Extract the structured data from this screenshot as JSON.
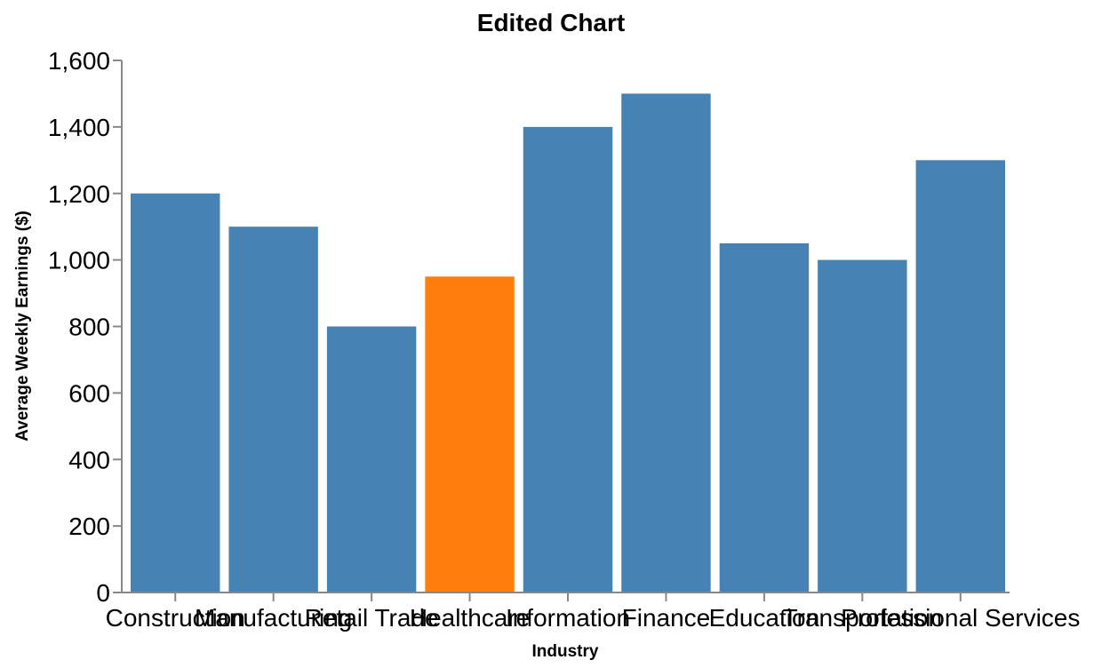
{
  "chart_data": {
    "type": "bar",
    "title": "Edited Chart",
    "xlabel": "Industry",
    "ylabel": "Average Weekly Earnings ($)",
    "categories": [
      "Construction",
      "Manufacturing",
      "Retail Trade",
      "Healthcare",
      "Information",
      "Finance",
      "Education",
      "Transportation",
      "Professional Services"
    ],
    "values": [
      1200,
      1100,
      800,
      950,
      1400,
      1500,
      1050,
      1000,
      1300
    ],
    "highlight_index": 3,
    "ylim": [
      0,
      1600
    ],
    "yticks": [
      0,
      200,
      400,
      600,
      800,
      1000,
      1200,
      1400,
      1600
    ],
    "ytick_labels": [
      "0",
      "200",
      "400",
      "600",
      "800",
      "1,000",
      "1,200",
      "1,400",
      "1,600"
    ],
    "grid": false,
    "colors": {
      "bar": "#4682b4",
      "highlight": "#ff7f0e",
      "axis": "#888888"
    }
  }
}
